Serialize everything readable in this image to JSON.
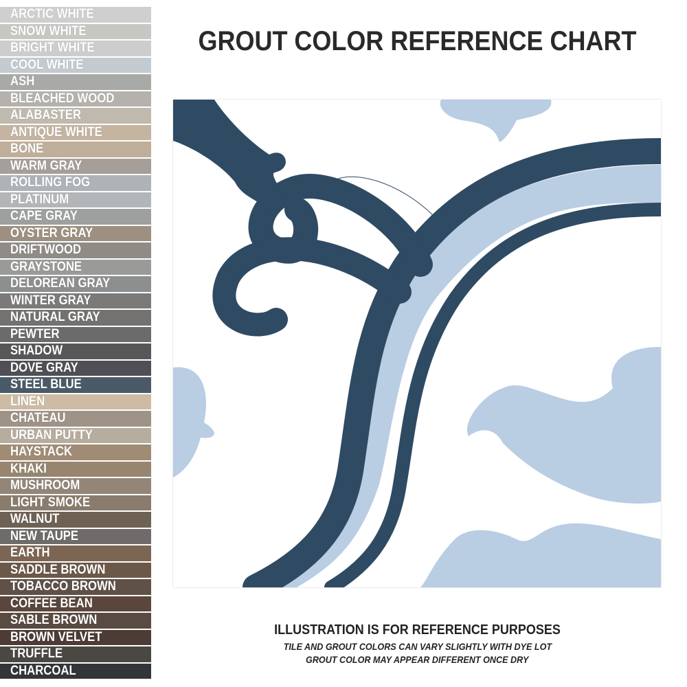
{
  "title": "GROUT COLOR REFERENCE CHART",
  "swatches": [
    {
      "name": "ARCTIC WHITE",
      "color": "#cfcfcf"
    },
    {
      "name": "SNOW WHITE",
      "color": "#c8c7c4"
    },
    {
      "name": "BRIGHT WHITE",
      "color": "#cdcdcd"
    },
    {
      "name": "COOL WHITE",
      "color": "#c3cad0"
    },
    {
      "name": "ASH",
      "color": "#a9a9a7"
    },
    {
      "name": "BLEACHED WOOD",
      "color": "#b5b2ad"
    },
    {
      "name": "ALABASTER",
      "color": "#c0b9ae"
    },
    {
      "name": "ANTIQUE WHITE",
      "color": "#c4b4a0"
    },
    {
      "name": "BONE",
      "color": "#bfae9a"
    },
    {
      "name": "WARM GRAY",
      "color": "#a69e98"
    },
    {
      "name": "ROLLING FOG",
      "color": "#aeb3b7"
    },
    {
      "name": "PLATINUM",
      "color": "#b2b6b8"
    },
    {
      "name": "CAPE GRAY",
      "color": "#9e9f9f"
    },
    {
      "name": "OYSTER GRAY",
      "color": "#9d9080"
    },
    {
      "name": "DRIFTWOOD",
      "color": "#8f8b86"
    },
    {
      "name": "GRAYSTONE",
      "color": "#9a9a98"
    },
    {
      "name": "DELOREAN GRAY",
      "color": "#8d8e90"
    },
    {
      "name": "WINTER GRAY",
      "color": "#7b7a79"
    },
    {
      "name": "NATURAL GRAY",
      "color": "#737270"
    },
    {
      "name": "PEWTER",
      "color": "#6b6b6b"
    },
    {
      "name": "SHADOW",
      "color": "#57575a"
    },
    {
      "name": "DOVE GRAY",
      "color": "#4f4f55"
    },
    {
      "name": "STEEL BLUE",
      "color": "#4b5a68"
    },
    {
      "name": "LINEN",
      "color": "#cdbba3"
    },
    {
      "name": "CHATEAU",
      "color": "#9f9387"
    },
    {
      "name": "URBAN PUTTY",
      "color": "#b7ad9f"
    },
    {
      "name": "HAYSTACK",
      "color": "#a08b75"
    },
    {
      "name": "KHAKI",
      "color": "#978570"
    },
    {
      "name": "MUSHROOM",
      "color": "#938679"
    },
    {
      "name": "LIGHT SMOKE",
      "color": "#8a7c6d"
    },
    {
      "name": "WALNUT",
      "color": "#6e6255"
    },
    {
      "name": "NEW TAUPE",
      "color": "#6f6b6a"
    },
    {
      "name": "EARTH",
      "color": "#7d6553"
    },
    {
      "name": "SADDLE BROWN",
      "color": "#6b5848"
    },
    {
      "name": "TOBACCO BROWN",
      "color": "#5f5147"
    },
    {
      "name": "COFFEE BEAN",
      "color": "#5a463c"
    },
    {
      "name": "SABLE BROWN",
      "color": "#594a42"
    },
    {
      "name": "BROWN VELVET",
      "color": "#4c3c35"
    },
    {
      "name": "TRUFFLE",
      "color": "#4b4743"
    },
    {
      "name": "CHARCOAL",
      "color": "#333538"
    }
  ],
  "tile": {
    "dark_color": "#2f4a63",
    "light_color": "#b9cde3"
  },
  "footer": {
    "line1": "ILLUSTRATION IS FOR REFERENCE PURPOSES",
    "line2": "TILE AND GROUT COLORS CAN VARY SLIGHTLY WITH DYE LOT",
    "line3": "GROUT COLOR MAY APPEAR DIFFERENT ONCE DRY"
  }
}
